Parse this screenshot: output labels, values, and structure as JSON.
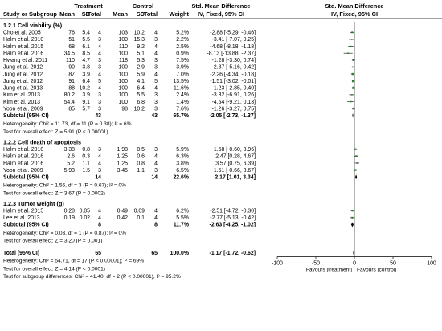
{
  "header": {
    "group1": "Treatment",
    "group2": "Control",
    "smd_title": "Std. Mean Difference",
    "smd_title_plot": "Std. Mean Difference",
    "columns": [
      "Study or Subgroup",
      "Mean",
      "SD",
      "Total",
      "Mean",
      "SD",
      "Total",
      "Weight",
      "IV, Fixed, 95% CI",
      "IV, Fixed, 95% CI"
    ]
  },
  "subgroups": [
    {
      "title": "1.2.1 Cell viability (%)",
      "studies": [
        {
          "name": "Cho et al. 2005",
          "t_mean": "76",
          "t_sd": "5.4",
          "t_n": "4",
          "c_mean": "103",
          "c_sd": "10.2",
          "c_n": "4",
          "weight": "5.2%",
          "ci_text": "-2.88 [-5.29, -0.46]",
          "smd": -2.88,
          "lo": -5.29,
          "hi": -0.46,
          "w": 5.2
        },
        {
          "name": "Halm et al. 2010",
          "t_mean": "51",
          "t_sd": "5.5",
          "t_n": "3",
          "c_mean": "100",
          "c_sd": "15.3",
          "c_n": "3",
          "weight": "2.2%",
          "ci_text": "-3.41 [-7.07, 0.25]",
          "smd": -3.41,
          "lo": -7.07,
          "hi": 0.25,
          "w": 2.2
        },
        {
          "name": "Halm et al. 2015",
          "t_mean": "68",
          "t_sd": "6.1",
          "t_n": "4",
          "c_mean": "110",
          "c_sd": "9.2",
          "c_n": "4",
          "weight": "2.5%",
          "ci_text": "-4.68 [-8.18, -1.18]",
          "smd": -4.68,
          "lo": -8.18,
          "hi": -1.18,
          "w": 2.5
        },
        {
          "name": "Halm et al. 2016",
          "t_mean": "34.5",
          "t_sd": "8.5",
          "t_n": "4",
          "c_mean": "100",
          "c_sd": "5.1",
          "c_n": "4",
          "weight": "0.9%",
          "ci_text": "-8.13 [-13.88, -2.37]",
          "smd": -8.13,
          "lo": -13.88,
          "hi": -2.37,
          "w": 0.9
        },
        {
          "name": "Hwang et al. 2011",
          "t_mean": "110",
          "t_sd": "4.7",
          "t_n": "3",
          "c_mean": "118",
          "c_sd": "5.3",
          "c_n": "3",
          "weight": "7.5%",
          "ci_text": "-1.28 [-3.30, 0.74]",
          "smd": -1.28,
          "lo": -3.3,
          "hi": 0.74,
          "w": 7.5
        },
        {
          "name": "Jung et al. 2012",
          "t_mean": "90",
          "t_sd": "3.8",
          "t_n": "3",
          "c_mean": "100",
          "c_sd": "2.9",
          "c_n": "3",
          "weight": "3.9%",
          "ci_text": "-2.37 [-5.16, 0.42]",
          "smd": -2.37,
          "lo": -5.16,
          "hi": 0.42,
          "w": 3.9
        },
        {
          "name": "Jung et al. 2012",
          "t_mean": "87",
          "t_sd": "3.9",
          "t_n": "4",
          "c_mean": "100",
          "c_sd": "5.9",
          "c_n": "4",
          "weight": "7.0%",
          "ci_text": "-2.26 [-4.34, -0.18]",
          "smd": -2.26,
          "lo": -4.34,
          "hi": -0.18,
          "w": 7.0
        },
        {
          "name": "Jung et al. 2012",
          "t_mean": "91",
          "t_sd": "6.4",
          "t_n": "5",
          "c_mean": "100",
          "c_sd": "4.1",
          "c_n": "5",
          "weight": "13.5%",
          "ci_text": "-1.51 [-3.02, -0.01]",
          "smd": -1.51,
          "lo": -3.02,
          "hi": -0.01,
          "w": 13.5
        },
        {
          "name": "Jung et al. 2013",
          "t_mean": "88",
          "t_sd": "10.2",
          "t_n": "4",
          "c_mean": "100",
          "c_sd": "6.4",
          "c_n": "4",
          "weight": "11.6%",
          "ci_text": "-1.23 [-2.85, 0.40]",
          "smd": -1.23,
          "lo": -2.85,
          "hi": 0.4,
          "w": 11.6
        },
        {
          "name": "Kim et al. 2013",
          "t_mean": "80.2",
          "t_sd": "3.9",
          "t_n": "3",
          "c_mean": "100",
          "c_sd": "5.5",
          "c_n": "3",
          "weight": "2.4%",
          "ci_text": "-3.32 [-6.91, 0.26]",
          "smd": -3.32,
          "lo": -6.91,
          "hi": 0.26,
          "w": 2.4
        },
        {
          "name": "Kim et al. 2013",
          "t_mean": "54.4",
          "t_sd": "9.1",
          "t_n": "3",
          "c_mean": "100",
          "c_sd": "6.8",
          "c_n": "3",
          "weight": "1.4%",
          "ci_text": "-4.54 [-9.21, 0.13]",
          "smd": -4.54,
          "lo": -9.21,
          "hi": 0.13,
          "w": 1.4
        },
        {
          "name": "Yoon et al. 2009",
          "t_mean": "85",
          "t_sd": "5.7",
          "t_n": "3",
          "c_mean": "98",
          "c_sd": "10.2",
          "c_n": "3",
          "weight": "7.6%",
          "ci_text": "-1.26 [-3.27, 0.75]",
          "smd": -1.26,
          "lo": -3.27,
          "hi": 0.75,
          "w": 7.6
        }
      ],
      "subtotal": {
        "label": "Subtotal (95% CI)",
        "t_n": "43",
        "c_n": "43",
        "weight": "65.7%",
        "ci_text": "-2.05 [-2.73, -1.37]",
        "smd": -2.05,
        "lo": -2.73,
        "hi": -1.37
      },
      "heterogeneity": "Heterogeneity: Chi² = 11.73, df = 11 (P = 0.38); I² = 6%",
      "overall_test": "Test for overall effect: Z = 5.91 (P < 0.00001)"
    },
    {
      "title": "1.2.2 Cell death of apoptosis",
      "studies": [
        {
          "name": "Halm et al. 2010",
          "t_mean": "3.38",
          "t_sd": "0.8",
          "t_n": "3",
          "c_mean": "1.98",
          "c_sd": "0.5",
          "c_n": "3",
          "weight": "5.9%",
          "ci_text": "1.68 [-0.60, 3.96]",
          "smd": 1.68,
          "lo": -0.6,
          "hi": 3.96,
          "w": 5.9
        },
        {
          "name": "Halm et al. 2016",
          "t_mean": "2.6",
          "t_sd": "0.3",
          "t_n": "4",
          "c_mean": "1.25",
          "c_sd": "0.6",
          "c_n": "4",
          "weight": "6.3%",
          "ci_text": "2.47 [0.28, 4.67]",
          "smd": 2.47,
          "lo": 0.28,
          "hi": 4.67,
          "w": 6.3
        },
        {
          "name": "Halm et al. 2016",
          "t_mean": "5.2",
          "t_sd": "1.1",
          "t_n": "4",
          "c_mean": "1.25",
          "c_sd": "0.8",
          "c_n": "4",
          "weight": "3.8%",
          "ci_text": "3.57 [0.75, 6.39]",
          "smd": 3.57,
          "lo": 0.75,
          "hi": 6.39,
          "w": 3.8
        },
        {
          "name": "Yoon et al. 2009",
          "t_mean": "5.93",
          "t_sd": "1.5",
          "t_n": "3",
          "c_mean": "3.45",
          "c_sd": "1.1",
          "c_n": "3",
          "weight": "6.5%",
          "ci_text": "1.51 [-0.66, 3.67]",
          "smd": 1.51,
          "lo": -0.66,
          "hi": 3.67,
          "w": 6.5
        }
      ],
      "subtotal": {
        "label": "Subtotal (95% CI)",
        "t_n": "14",
        "c_n": "14",
        "weight": "22.6%",
        "ci_text": "2.17 [1.01, 3.34]",
        "smd": 2.17,
        "lo": 1.01,
        "hi": 3.34
      },
      "heterogeneity": "Heterogeneity: Chi² = 1.56, df = 3 (P = 0.67); I² = 0%",
      "overall_test": "Test for overall effect: Z = 3.67 (P = 0.0002)"
    },
    {
      "title": "1.2.3 Tumor weight (g)",
      "studies": [
        {
          "name": "Halm et al. 2015",
          "t_mean": "0.28",
          "t_sd": "0.05",
          "t_n": "4",
          "c_mean": "0.49",
          "c_sd": "0.09",
          "c_n": "4",
          "weight": "6.2%",
          "ci_text": "-2.51 [-4.72, -0.30]",
          "smd": -2.51,
          "lo": -4.72,
          "hi": -0.3,
          "w": 6.2
        },
        {
          "name": "Lee et al. 2013",
          "t_mean": "0.19",
          "t_sd": "0.02",
          "t_n": "4",
          "c_mean": "0.42",
          "c_sd": "0.1",
          "c_n": "4",
          "weight": "5.5%",
          "ci_text": "-2.77 [-5.13, -0.42]",
          "smd": -2.77,
          "lo": -5.13,
          "hi": -0.42,
          "w": 5.5
        }
      ],
      "subtotal": {
        "label": "Subtotal (95% CI)",
        "t_n": "8",
        "c_n": "8",
        "weight": "11.7%",
        "ci_text": "-2.63 [-4.25, -1.02]",
        "smd": -2.63,
        "lo": -4.25,
        "hi": -1.02
      },
      "heterogeneity": "Heterogeneity: Chi² = 0.03, df = 1 (P = 0.87); I² = 0%",
      "overall_test": "Test for overall effect: Z = 3.20 (P = 0.001)"
    }
  ],
  "total": {
    "label": "Total (95% CI)",
    "t_n": "65",
    "c_n": "65",
    "weight": "100.0%",
    "ci_text": "-1.17 [-1.72, -0.62]",
    "smd": -1.17,
    "lo": -1.72,
    "hi": -0.62
  },
  "footer": {
    "heterogeneity": "Heterogeneity: Chi² = 54.71, df = 17 (P < 0.00001); I² = 69%",
    "overall_test": "Test for overall effect: Z = 4.14 (P < 0.0001)",
    "subgroup_test": "Test for subgroup differences: Chi² = 41.40, df = 2 (P < 0.00001), I² = 95.2%"
  },
  "chart_data": {
    "type": "forest",
    "xlim": [
      -100,
      100
    ],
    "x_ticks": [
      -100,
      -50,
      0,
      50,
      100
    ],
    "x_tick_labels": [
      "-100",
      "-50",
      "0",
      "50",
      "100"
    ],
    "favours_left": "Favours [treatment]",
    "favours_right": "Favours [control]",
    "box_color": "#2e7d32",
    "diamond_color": "#000000"
  }
}
